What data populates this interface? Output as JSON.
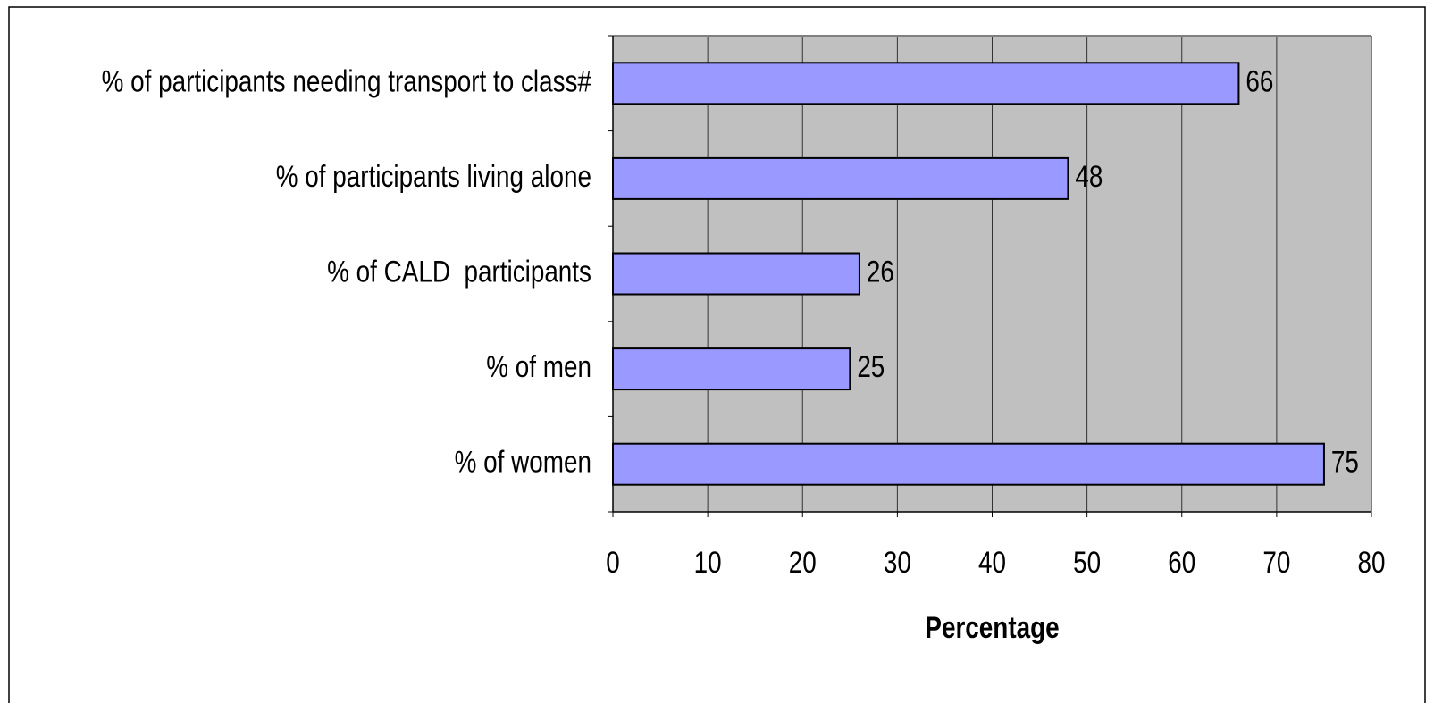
{
  "chart_data": {
    "type": "barh",
    "categories": [
      "% of participants needing transport to class#",
      "% of participants living alone",
      "% of CALD  participants",
      "% of men",
      "% of women"
    ],
    "values": [
      66,
      48,
      26,
      25,
      75
    ],
    "color": "#9999ff",
    "xlabel": "Percentage",
    "xlim": [
      0,
      80
    ],
    "xticks": [
      0,
      10,
      20,
      30,
      40,
      50,
      60,
      70,
      80
    ],
    "grid": true
  }
}
